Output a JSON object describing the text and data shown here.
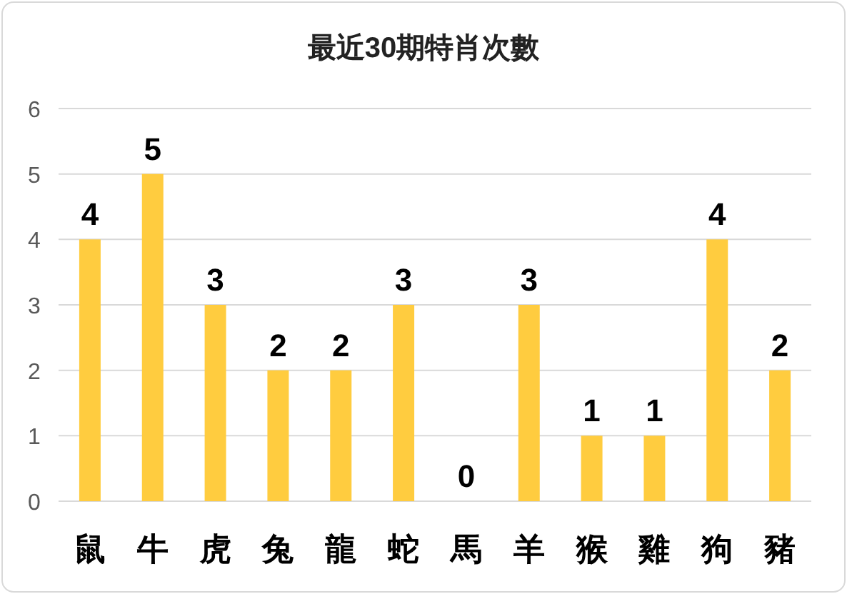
{
  "chart_data": {
    "type": "bar",
    "title": "最近30期特肖次數",
    "categories": [
      "鼠",
      "牛",
      "虎",
      "兔",
      "龍",
      "蛇",
      "馬",
      "羊",
      "猴",
      "雞",
      "狗",
      "豬"
    ],
    "values": [
      4,
      5,
      3,
      2,
      2,
      3,
      0,
      3,
      1,
      1,
      4,
      2
    ],
    "color": "#ffcc3f",
    "ylim": [
      0,
      6
    ],
    "yticks": [
      0,
      1,
      2,
      3,
      4,
      5,
      6
    ],
    "grid": "y",
    "data_labels": true
  }
}
